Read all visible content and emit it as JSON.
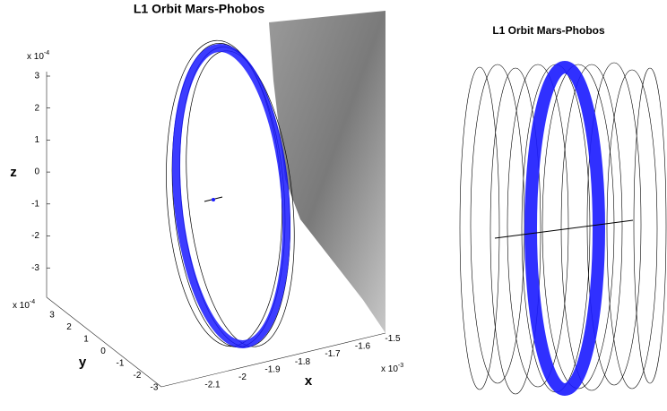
{
  "panels": [
    {
      "title": "L1 Orbit Mars-Phobos",
      "z_axis": {
        "label": "z",
        "exponent_base": "x 10",
        "exponent_power": "-4",
        "ticks": [
          "3",
          "2",
          "1",
          "0",
          "-1",
          "-2",
          "-3"
        ]
      },
      "y_axis": {
        "label": "y",
        "exponent_base": "x 10",
        "exponent_power": "-4",
        "ticks": [
          "3",
          "2",
          "1",
          "0",
          "-1",
          "-2",
          "-3"
        ]
      },
      "x_axis": {
        "label": "x",
        "exponent_base": "x 10",
        "exponent_power": "-3",
        "ticks": [
          "-2.1",
          "-2",
          "-1.9",
          "-1.8",
          "-1.7",
          "-1.6",
          "-1.5"
        ]
      }
    },
    {
      "title": "L1 Orbit Mars-Phobos"
    }
  ]
}
